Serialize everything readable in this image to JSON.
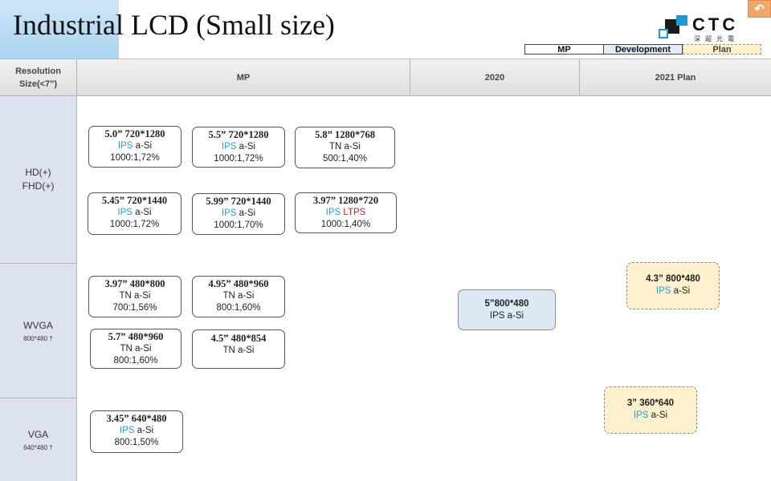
{
  "title": "Industrial LCD (Small size)",
  "logo": {
    "brand": "CTC",
    "sub": "深超光電"
  },
  "return_icon": "return-arrow-icon",
  "legend": {
    "mp": "MP",
    "development": "Development",
    "plan": "Plan"
  },
  "headers": {
    "corner": "Resolution\nSize(<7\")",
    "mp": "MP",
    "y2020": "2020",
    "y2021": "2021 Plan"
  },
  "rows": {
    "hd": {
      "label": "HD(+)\nFHD(+)"
    },
    "wvga": {
      "label": "WVGA",
      "sub": "800*480 †"
    },
    "vga": {
      "label": "VGA",
      "sub": "640*480 †"
    }
  },
  "cards": {
    "c1": {
      "name": "5.0” 720*1280",
      "ips": "IPS",
      "tech": " a-Si",
      "spec": "1000:1,72%"
    },
    "c2": {
      "name": "5.5” 720*1280",
      "ips": "IPS",
      "tech": " a-Si",
      "spec": "1000:1,72%"
    },
    "c3": {
      "name": "5.8”  1280*768",
      "tech": "TN a-Si",
      "spec": "500:1,40%"
    },
    "c4": {
      "name": "5.45” 720*1440",
      "ips": "IPS",
      "tech": " a-Si",
      "spec": "1000:1,72%"
    },
    "c5": {
      "name": "5.99” 720*1440",
      "ips": "IPS",
      "tech": "  a-Si",
      "spec": "1000:1,70%"
    },
    "c6": {
      "name": "3.97” 1280*720",
      "ips": "IPS",
      "ltps": " LTPS",
      "spec": "1000:1,40%"
    },
    "c7": {
      "name": "3.97” 480*800",
      "tech": "TN a-Si",
      "spec": "700:1,56%"
    },
    "c8": {
      "name": "4.95”  480*960",
      "tech": "TN a-Si",
      "spec": "800:1,60%"
    },
    "c9": {
      "name": "5.7”  480*960",
      "tech": "TN a-Si",
      "spec": "800:1,60%"
    },
    "c10": {
      "name": "4.5” 480*854",
      "tech": "TN a-Si"
    },
    "c11": {
      "name": "3.45” 640*480",
      "ips": "IPS",
      "tech": " a-Si",
      "spec": "800:1,50%"
    },
    "d1": {
      "name": "5”800*480",
      "tech": "IPS  a-Si"
    },
    "p1": {
      "name": "4.3” 800*480",
      "ips": "IPS",
      "tech": " a-Si"
    },
    "p2": {
      "name": "3” 360*640",
      "ips": "IPS",
      "tech": " a-Si"
    }
  },
  "colors": {
    "ips": "#1ea3d8",
    "ltps": "#d21f1f",
    "development": "#dde8f5",
    "plan": "#fdf0cd",
    "row_label": "#dde2f1"
  }
}
